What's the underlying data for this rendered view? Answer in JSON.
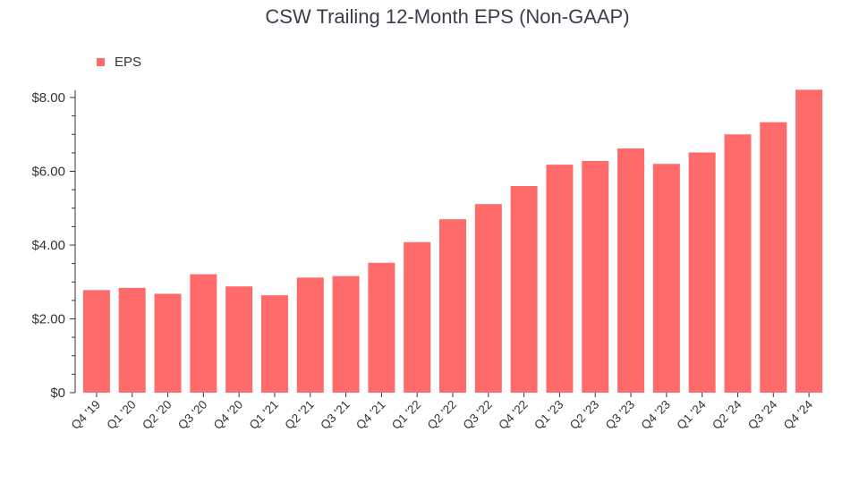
{
  "chart_data": {
    "type": "bar",
    "title": "CSW Trailing 12-Month EPS (Non-GAAP)",
    "xlabel": "",
    "ylabel": "",
    "categories": [
      "Q4 '19",
      "Q1 '20",
      "Q2 '20",
      "Q3 '20",
      "Q4 '20",
      "Q1 '21",
      "Q2 '21",
      "Q3 '21",
      "Q4 '21",
      "Q1 '22",
      "Q2 '22",
      "Q3 '22",
      "Q4 '22",
      "Q1 '23",
      "Q2 '23",
      "Q3 '23",
      "Q4 '23",
      "Q1 '24",
      "Q2 '24",
      "Q3 '24",
      "Q4 '24"
    ],
    "series": [
      {
        "name": "EPS",
        "color": "#ff6b6b",
        "values": [
          2.78,
          2.84,
          2.68,
          3.21,
          2.88,
          2.64,
          3.12,
          3.16,
          3.52,
          4.08,
          4.7,
          5.11,
          5.6,
          6.18,
          6.28,
          6.62,
          6.2,
          6.51,
          7.0,
          7.33,
          8.21
        ]
      }
    ],
    "ylim": [
      0,
      8.2
    ],
    "yticks": [
      {
        "value": 0,
        "label": "$0"
      },
      {
        "value": 2,
        "label": "$2.00"
      },
      {
        "value": 4,
        "label": "$4.00"
      },
      {
        "value": 6,
        "label": "$6.00"
      },
      {
        "value": 8,
        "label": "$8.00"
      }
    ],
    "minor_tick_step": 0.5,
    "legend_position": "top-left",
    "grid": false,
    "colors": {
      "bar": "#ff6b6b",
      "title": "#3a3f4b",
      "text": "#333333",
      "axis": "#333333"
    }
  }
}
